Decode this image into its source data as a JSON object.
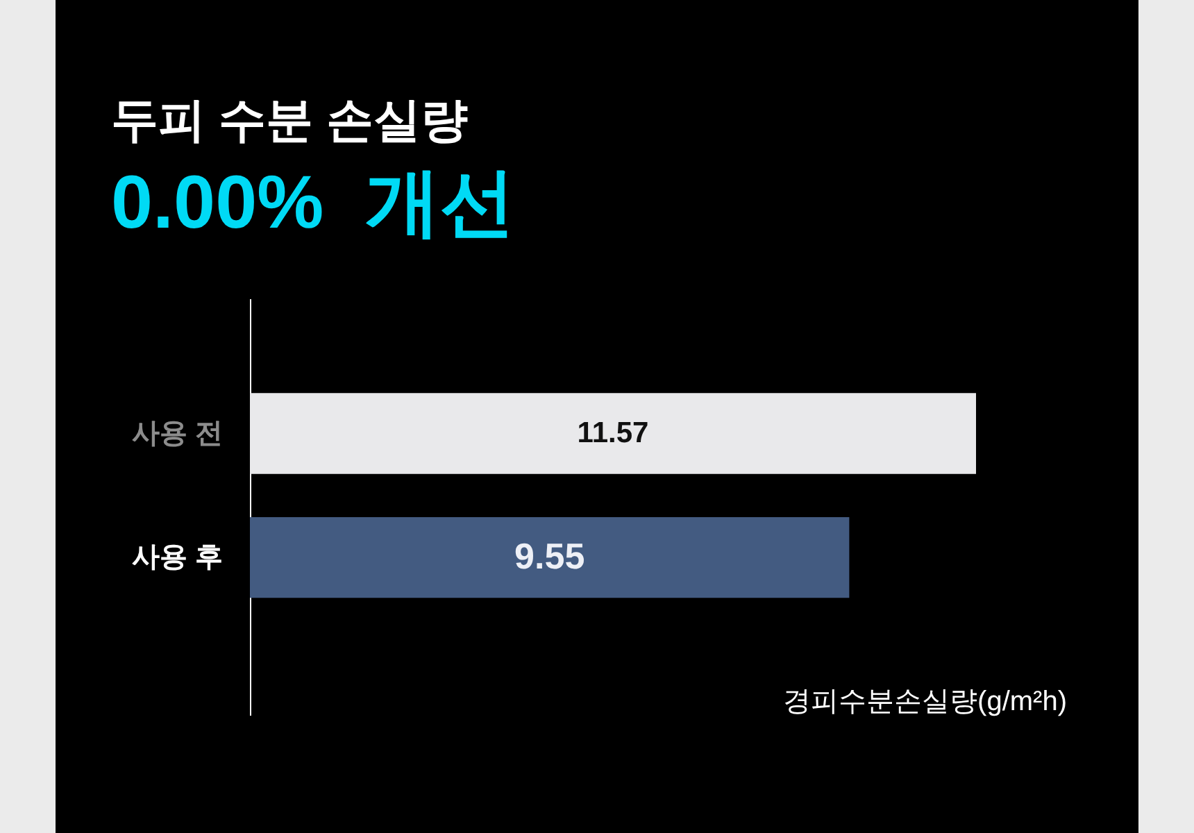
{
  "chart_data": {
    "type": "bar",
    "orientation": "horizontal",
    "title": "두피 수분 손실량",
    "subtitle": "0.00%  개선",
    "xlabel": "경피수분손실량(g/m²h)",
    "categories": [
      "사용 전",
      "사용 후"
    ],
    "values": [
      11.57,
      9.55
    ],
    "colors": [
      "#e9e9eb",
      "#435b81"
    ],
    "data_labels": true,
    "tick_labels": "y"
  }
}
